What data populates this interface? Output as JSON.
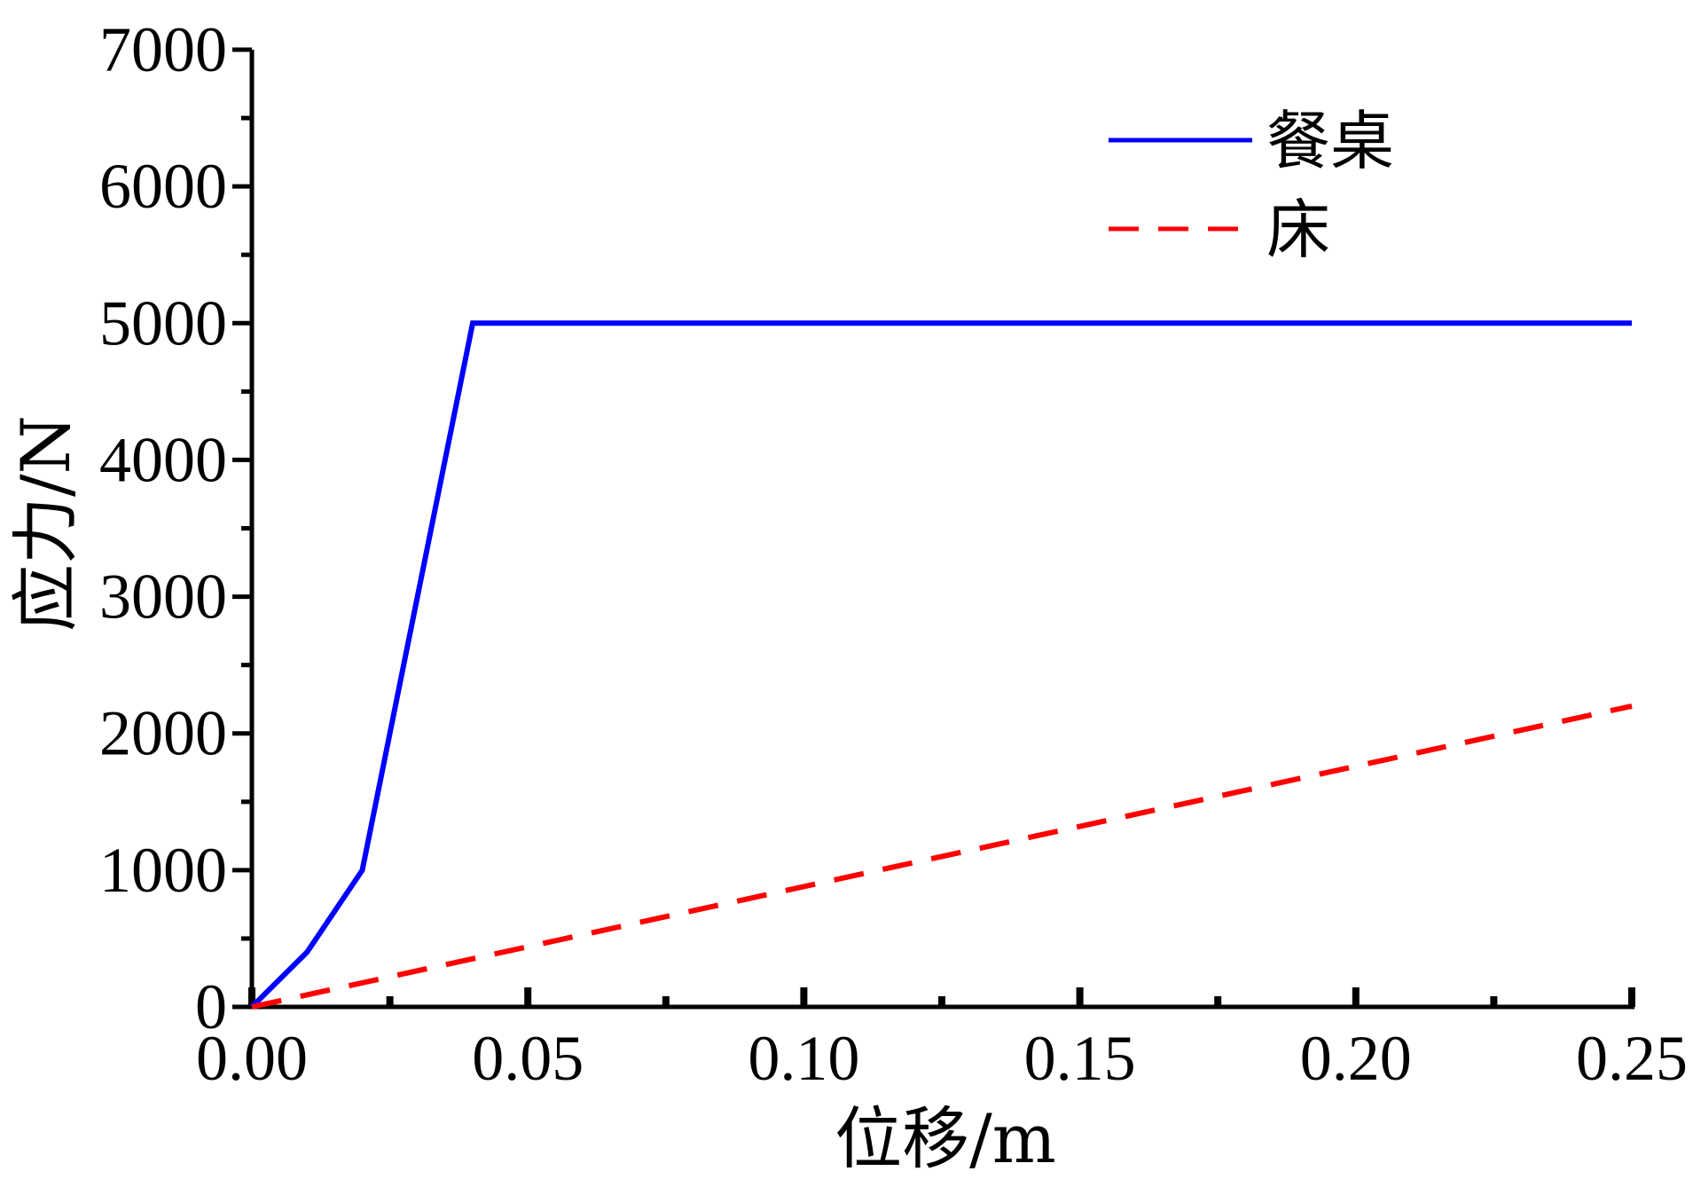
{
  "chart_data": {
    "type": "line",
    "xlabel": "位移/m",
    "ylabel": "应力/N",
    "xlim": [
      0,
      0.25
    ],
    "ylim": [
      0,
      7000
    ],
    "x_ticks": [
      0,
      0.05,
      0.1,
      0.15,
      0.2,
      0.25
    ],
    "x_tick_labels": [
      "0.00",
      "0.05",
      "0.10",
      "0.15",
      "0.20",
      "0.25"
    ],
    "x_minor_ticks": [
      0.025,
      0.075,
      0.125,
      0.175,
      0.225
    ],
    "y_ticks": [
      0,
      1000,
      2000,
      3000,
      4000,
      5000,
      6000,
      7000
    ],
    "y_tick_labels": [
      "0",
      "1000",
      "2000",
      "3000",
      "4000",
      "5000",
      "6000",
      "7000"
    ],
    "y_minor_ticks": [
      500,
      1500,
      2500,
      3500,
      4500,
      5500,
      6500
    ],
    "grid": false,
    "legend_position": "top-right",
    "series": [
      {
        "name": "餐桌",
        "style": "solid",
        "color": "#0000ff",
        "x": [
          0,
          0.01,
          0.02,
          0.03,
          0.04,
          0.25
        ],
        "y": [
          0,
          400,
          1000,
          3000,
          5000,
          5000
        ]
      },
      {
        "name": "床",
        "style": "dashed",
        "color": "#ff0000",
        "x": [
          0,
          0.25
        ],
        "y": [
          0,
          2200
        ]
      }
    ]
  }
}
